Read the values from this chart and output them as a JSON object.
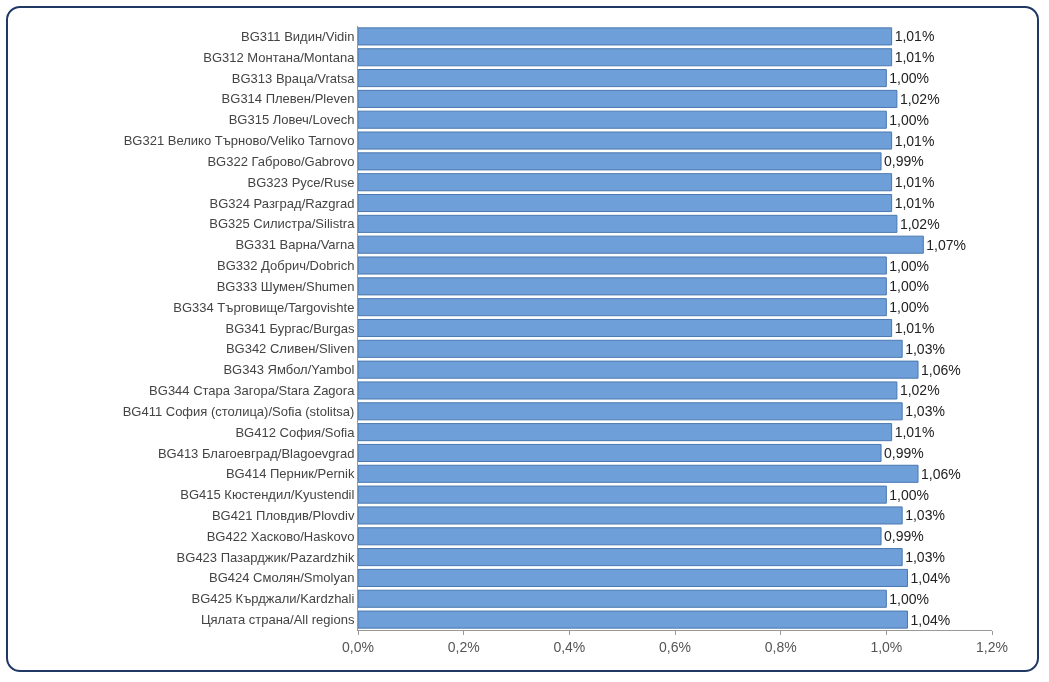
{
  "chart_data": {
    "type": "bar",
    "orientation": "horizontal",
    "categories": [
      "BG311 Видин/Vidin",
      "BG312 Монтана/Montana",
      "BG313 Враца/Vratsa",
      "BG314 Плевен/Pleven",
      "BG315 Ловеч/Lovech",
      "BG321 Велико Търново/Veliko Tarnovo",
      "BG322 Габрово/Gabrovo",
      "BG323 Русе/Ruse",
      "BG324 Разград/Razgrad",
      "BG325 Силистра/Silistra",
      "BG331 Варна/Varna",
      "BG332 Добрич/Dobrich",
      "BG333 Шумен/Shumen",
      "BG334 Търговище/Targovishte",
      "BG341 Бургас/Burgas",
      "BG342 Сливен/Sliven",
      "BG343 Ямбол/Yambol",
      "BG344 Стара Загора/Stara Zagora",
      "BG411 София (столица)/Sofia (stolitsa)",
      "BG412 София/Sofia",
      "BG413 Благоевград/Blagoevgrad",
      "BG414 Перник/Pernik",
      "BG415 Кюстендил/Kyustendil",
      "BG421 Пловдив/Plovdiv",
      "BG422 Хасково/Haskovo",
      "BG423 Пазарджик/Pazardzhik",
      "BG424 Смолян/Smolyan",
      "BG425 Кърджали/Kardzhali",
      "Цялата страна/All regions"
    ],
    "values": [
      1.01,
      1.01,
      1.0,
      1.02,
      1.0,
      1.01,
      0.99,
      1.01,
      1.01,
      1.02,
      1.07,
      1.0,
      1.0,
      1.0,
      1.01,
      1.03,
      1.06,
      1.02,
      1.03,
      1.01,
      0.99,
      1.06,
      1.0,
      1.03,
      0.99,
      1.03,
      1.04,
      1.0,
      1.04
    ],
    "value_labels": [
      "1,01%",
      "1,01%",
      "1,00%",
      "1,02%",
      "1,00%",
      "1,01%",
      "0,99%",
      "1,01%",
      "1,01%",
      "1,02%",
      "1,07%",
      "1,00%",
      "1,00%",
      "1,00%",
      "1,01%",
      "1,03%",
      "1,06%",
      "1,02%",
      "1,03%",
      "1,01%",
      "0,99%",
      "1,06%",
      "1,00%",
      "1,03%",
      "0,99%",
      "1,03%",
      "1,04%",
      "1,00%",
      "1,04%"
    ],
    "color": "#6f9fd8",
    "xlim": [
      0,
      1.2
    ],
    "xticks": [
      {
        "value": 0,
        "label": "0,0%"
      },
      {
        "value": 0.2,
        "label": "0,2%"
      },
      {
        "value": 0.4,
        "label": "0,4%"
      },
      {
        "value": 0.6,
        "label": "0,6%"
      },
      {
        "value": 0.8,
        "label": "0,8%"
      },
      {
        "value": 1.0,
        "label": "1,0%"
      },
      {
        "value": 1.2,
        "label": "1,2%"
      }
    ],
    "grid": false
  }
}
